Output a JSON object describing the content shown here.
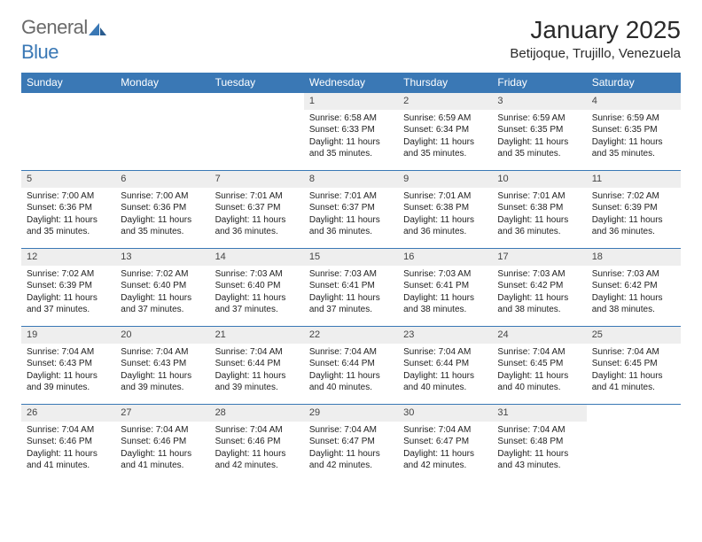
{
  "brand": {
    "part1": "General",
    "part2": "Blue"
  },
  "title": "January 2025",
  "location": "Betijoque, Trujillo, Venezuela",
  "colors": {
    "header_bg": "#3a78b5",
    "header_fg": "#ffffff",
    "daynum_bg": "#eeeeee",
    "rule": "#3a78b5",
    "text": "#222222",
    "brand_gray": "#6a6a6a",
    "brand_blue": "#3a78b5"
  },
  "weekdays": [
    "Sunday",
    "Monday",
    "Tuesday",
    "Wednesday",
    "Thursday",
    "Friday",
    "Saturday"
  ],
  "first_weekday_index": 3,
  "days": [
    {
      "n": 1,
      "sunrise": "6:58 AM",
      "sunset": "6:33 PM",
      "daylight": "11 hours and 35 minutes."
    },
    {
      "n": 2,
      "sunrise": "6:59 AM",
      "sunset": "6:34 PM",
      "daylight": "11 hours and 35 minutes."
    },
    {
      "n": 3,
      "sunrise": "6:59 AM",
      "sunset": "6:35 PM",
      "daylight": "11 hours and 35 minutes."
    },
    {
      "n": 4,
      "sunrise": "6:59 AM",
      "sunset": "6:35 PM",
      "daylight": "11 hours and 35 minutes."
    },
    {
      "n": 5,
      "sunrise": "7:00 AM",
      "sunset": "6:36 PM",
      "daylight": "11 hours and 35 minutes."
    },
    {
      "n": 6,
      "sunrise": "7:00 AM",
      "sunset": "6:36 PM",
      "daylight": "11 hours and 35 minutes."
    },
    {
      "n": 7,
      "sunrise": "7:01 AM",
      "sunset": "6:37 PM",
      "daylight": "11 hours and 36 minutes."
    },
    {
      "n": 8,
      "sunrise": "7:01 AM",
      "sunset": "6:37 PM",
      "daylight": "11 hours and 36 minutes."
    },
    {
      "n": 9,
      "sunrise": "7:01 AM",
      "sunset": "6:38 PM",
      "daylight": "11 hours and 36 minutes."
    },
    {
      "n": 10,
      "sunrise": "7:01 AM",
      "sunset": "6:38 PM",
      "daylight": "11 hours and 36 minutes."
    },
    {
      "n": 11,
      "sunrise": "7:02 AM",
      "sunset": "6:39 PM",
      "daylight": "11 hours and 36 minutes."
    },
    {
      "n": 12,
      "sunrise": "7:02 AM",
      "sunset": "6:39 PM",
      "daylight": "11 hours and 37 minutes."
    },
    {
      "n": 13,
      "sunrise": "7:02 AM",
      "sunset": "6:40 PM",
      "daylight": "11 hours and 37 minutes."
    },
    {
      "n": 14,
      "sunrise": "7:03 AM",
      "sunset": "6:40 PM",
      "daylight": "11 hours and 37 minutes."
    },
    {
      "n": 15,
      "sunrise": "7:03 AM",
      "sunset": "6:41 PM",
      "daylight": "11 hours and 37 minutes."
    },
    {
      "n": 16,
      "sunrise": "7:03 AM",
      "sunset": "6:41 PM",
      "daylight": "11 hours and 38 minutes."
    },
    {
      "n": 17,
      "sunrise": "7:03 AM",
      "sunset": "6:42 PM",
      "daylight": "11 hours and 38 minutes."
    },
    {
      "n": 18,
      "sunrise": "7:03 AM",
      "sunset": "6:42 PM",
      "daylight": "11 hours and 38 minutes."
    },
    {
      "n": 19,
      "sunrise": "7:04 AM",
      "sunset": "6:43 PM",
      "daylight": "11 hours and 39 minutes."
    },
    {
      "n": 20,
      "sunrise": "7:04 AM",
      "sunset": "6:43 PM",
      "daylight": "11 hours and 39 minutes."
    },
    {
      "n": 21,
      "sunrise": "7:04 AM",
      "sunset": "6:44 PM",
      "daylight": "11 hours and 39 minutes."
    },
    {
      "n": 22,
      "sunrise": "7:04 AM",
      "sunset": "6:44 PM",
      "daylight": "11 hours and 40 minutes."
    },
    {
      "n": 23,
      "sunrise": "7:04 AM",
      "sunset": "6:44 PM",
      "daylight": "11 hours and 40 minutes."
    },
    {
      "n": 24,
      "sunrise": "7:04 AM",
      "sunset": "6:45 PM",
      "daylight": "11 hours and 40 minutes."
    },
    {
      "n": 25,
      "sunrise": "7:04 AM",
      "sunset": "6:45 PM",
      "daylight": "11 hours and 41 minutes."
    },
    {
      "n": 26,
      "sunrise": "7:04 AM",
      "sunset": "6:46 PM",
      "daylight": "11 hours and 41 minutes."
    },
    {
      "n": 27,
      "sunrise": "7:04 AM",
      "sunset": "6:46 PM",
      "daylight": "11 hours and 41 minutes."
    },
    {
      "n": 28,
      "sunrise": "7:04 AM",
      "sunset": "6:46 PM",
      "daylight": "11 hours and 42 minutes."
    },
    {
      "n": 29,
      "sunrise": "7:04 AM",
      "sunset": "6:47 PM",
      "daylight": "11 hours and 42 minutes."
    },
    {
      "n": 30,
      "sunrise": "7:04 AM",
      "sunset": "6:47 PM",
      "daylight": "11 hours and 42 minutes."
    },
    {
      "n": 31,
      "sunrise": "7:04 AM",
      "sunset": "6:48 PM",
      "daylight": "11 hours and 43 minutes."
    }
  ],
  "labels": {
    "sunrise": "Sunrise:",
    "sunset": "Sunset:",
    "daylight": "Daylight:"
  }
}
